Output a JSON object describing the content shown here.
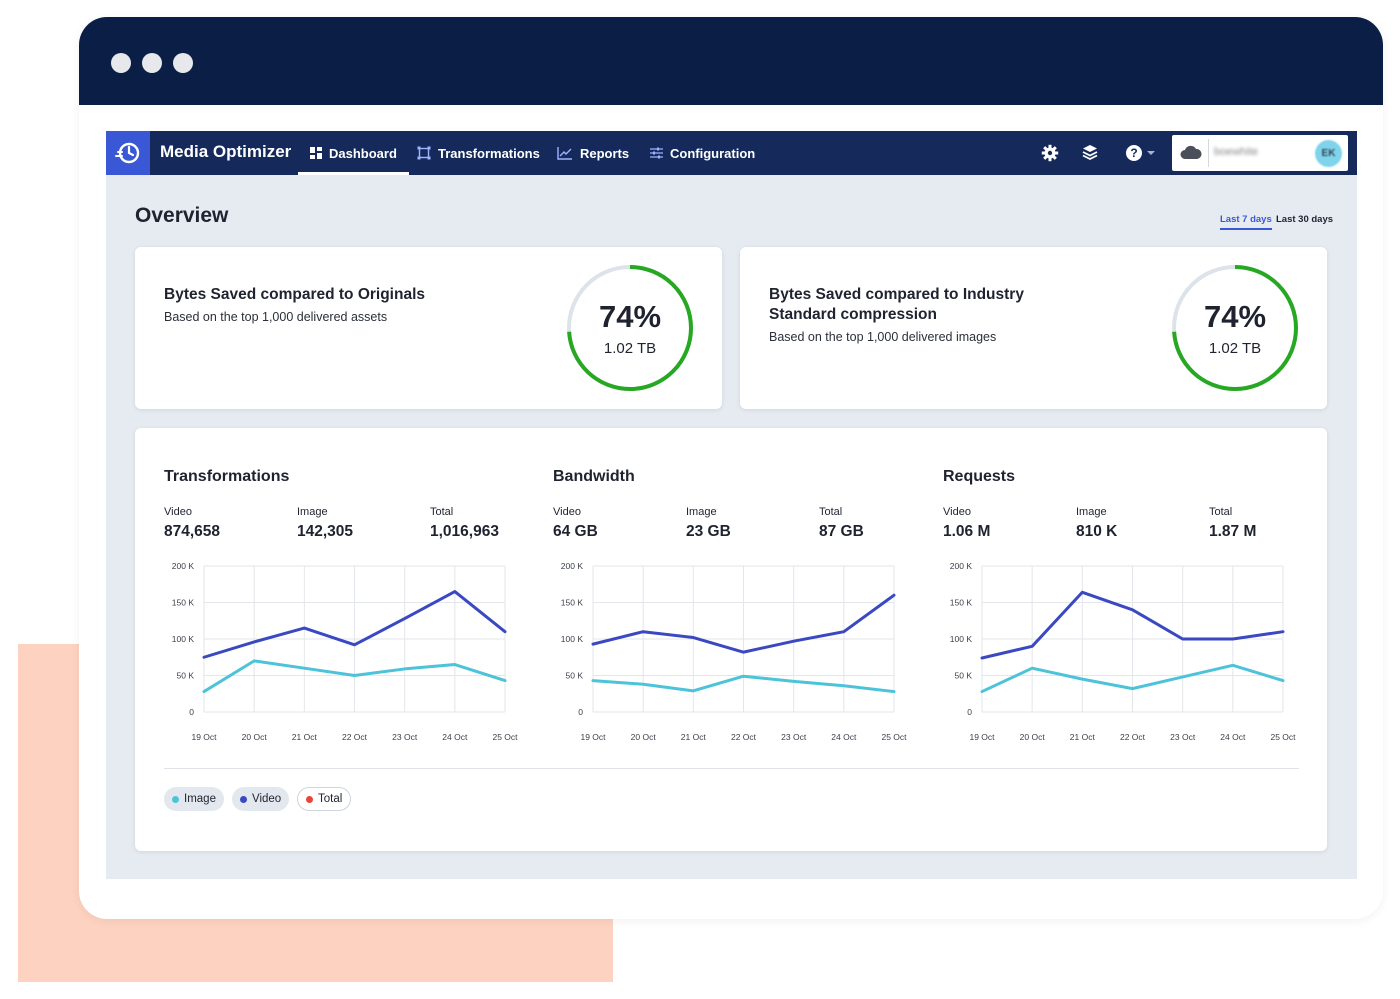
{
  "app": {
    "name": "Media Optimizer",
    "account_name": "boewhite",
    "avatar_initials": "EK"
  },
  "nav": {
    "tabs": [
      {
        "label": "Dashboard",
        "icon": "grid-icon",
        "active": true
      },
      {
        "label": "Transformations",
        "icon": "transform-icon",
        "active": false
      },
      {
        "label": "Reports",
        "icon": "chart-line-icon",
        "active": false
      },
      {
        "label": "Configuration",
        "icon": "sliders-icon",
        "active": false
      }
    ],
    "icons": [
      "gear-icon",
      "package-icon",
      "help-icon",
      "cloud-icon"
    ]
  },
  "overview": {
    "title": "Overview",
    "ranges": [
      {
        "label": "Last 7 days",
        "active": true
      },
      {
        "label": "Last 30 days",
        "active": false
      }
    ]
  },
  "savings": [
    {
      "title": "Bytes Saved compared to Originals",
      "subtitle": "Based on the top 1,000 delivered assets",
      "percent_label": "74%",
      "percent": 74,
      "size": "1.02 TB"
    },
    {
      "title": "Bytes Saved compared to Industry Standard compression",
      "subtitle": "Based on the top 1,000 delivered images",
      "percent_label": "74%",
      "percent": 74,
      "size": "1.02 TB"
    }
  ],
  "colors": {
    "image": "#4cc3d9",
    "video": "#3a48c2",
    "total": "#e8453c",
    "ring": "#27a822",
    "ring_track": "#dde3ea"
  },
  "metrics": [
    {
      "title": "Transformations",
      "stats": [
        {
          "label": "Video",
          "value": "874,658"
        },
        {
          "label": "Image",
          "value": "142,305"
        },
        {
          "label": "Total",
          "value": "1,016,963"
        }
      ]
    },
    {
      "title": "Bandwidth",
      "stats": [
        {
          "label": "Video",
          "value": "64 GB"
        },
        {
          "label": "Image",
          "value": "23 GB"
        },
        {
          "label": "Total",
          "value": "87 GB"
        }
      ]
    },
    {
      "title": "Requests",
      "stats": [
        {
          "label": "Video",
          "value": "1.06 M"
        },
        {
          "label": "Image",
          "value": "810 K"
        },
        {
          "label": "Total",
          "value": "1.87 M"
        }
      ]
    }
  ],
  "chart_data": [
    {
      "type": "line",
      "x": [
        "19 Oct",
        "20 Oct",
        "21 Oct",
        "22 Oct",
        "23 Oct",
        "24 Oct",
        "25 Oct"
      ],
      "yticks": [
        "200 K",
        "150 K",
        "100 K",
        "50 K",
        "0"
      ],
      "ylim": [
        0,
        200000
      ],
      "grid": true,
      "series": [
        {
          "name": "Video",
          "color": "#3a48c2",
          "values": [
            75000,
            96000,
            115000,
            92000,
            128000,
            165000,
            110000
          ]
        },
        {
          "name": "Image",
          "color": "#4cc3d9",
          "values": [
            28000,
            70000,
            60000,
            50000,
            59000,
            65000,
            43000
          ]
        }
      ]
    },
    {
      "type": "line",
      "x": [
        "19 Oct",
        "20 Oct",
        "21 Oct",
        "22 Oct",
        "23 Oct",
        "24 Oct",
        "25 Oct"
      ],
      "yticks": [
        "200 K",
        "150 K",
        "100 K",
        "50 K",
        "0"
      ],
      "ylim": [
        0,
        200000
      ],
      "grid": true,
      "series": [
        {
          "name": "Video",
          "color": "#3a48c2",
          "values": [
            93000,
            110000,
            102000,
            82000,
            97000,
            110000,
            160000
          ]
        },
        {
          "name": "Image",
          "color": "#4cc3d9",
          "values": [
            43000,
            38000,
            29000,
            49000,
            42000,
            36000,
            28000
          ]
        }
      ]
    },
    {
      "type": "line",
      "x": [
        "19 Oct",
        "20 Oct",
        "21 Oct",
        "22 Oct",
        "23 Oct",
        "24 Oct",
        "25 Oct"
      ],
      "yticks": [
        "200 K",
        "150 K",
        "100 K",
        "50 K",
        "0"
      ],
      "ylim": [
        0,
        200000
      ],
      "grid": true,
      "series": [
        {
          "name": "Video",
          "color": "#3a48c2",
          "values": [
            74000,
            90000,
            164000,
            140000,
            100000,
            100000,
            110000
          ]
        },
        {
          "name": "Image",
          "color": "#4cc3d9",
          "values": [
            28000,
            60000,
            45000,
            32000,
            48000,
            64000,
            43000
          ]
        }
      ]
    }
  ],
  "legend": [
    {
      "label": "Image",
      "color": "#4cc3d9",
      "bg": "#e3e8ef",
      "border": false
    },
    {
      "label": "Video",
      "color": "#3a48c2",
      "bg": "#e3e8ef",
      "border": false
    },
    {
      "label": "Total",
      "color": "#e8453c",
      "bg": "#ffffff",
      "border": true
    }
  ]
}
